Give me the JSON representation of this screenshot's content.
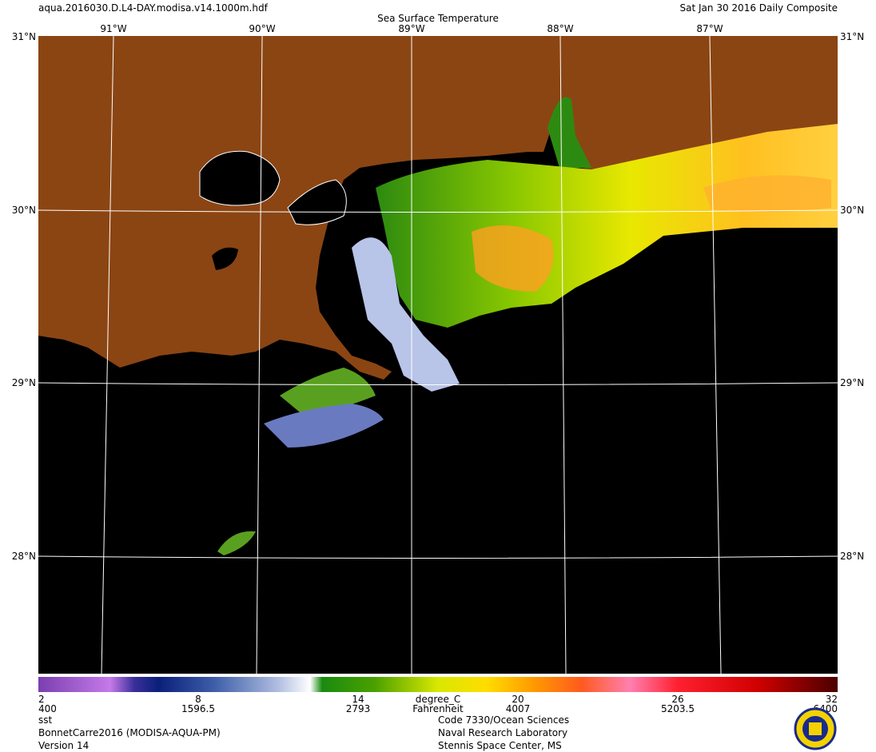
{
  "header": {
    "file": "aqua.2016030.D.L4-DAY.modisa.v14.1000m.hdf",
    "date": "Sat Jan 30 2016 Daily Composite",
    "title": "Sea Surface Temperature"
  },
  "map": {
    "longitudes": [
      "91°W",
      "90°W",
      "89°W",
      "88°W",
      "87°W"
    ],
    "latitudes": [
      "31°N",
      "30°N",
      "29°N",
      "28°N"
    ]
  },
  "colorbar": {
    "celsius_ticks": [
      2,
      8,
      14,
      20,
      26,
      32
    ],
    "celsius_unit": "degree_C",
    "second_ticks": [
      400,
      1596.5,
      2793,
      4007,
      5203.5,
      6400
    ],
    "second_unit": "Fahrenheit"
  },
  "footer": {
    "left": [
      "sst",
      "BonnetCarre2016 (MODISA-AQUA-PM)",
      "Version 14"
    ],
    "right": [
      "Code 7330/Ocean Sciences",
      "Naval Research Laboratory",
      "Stennis Space Center, MS"
    ]
  }
}
